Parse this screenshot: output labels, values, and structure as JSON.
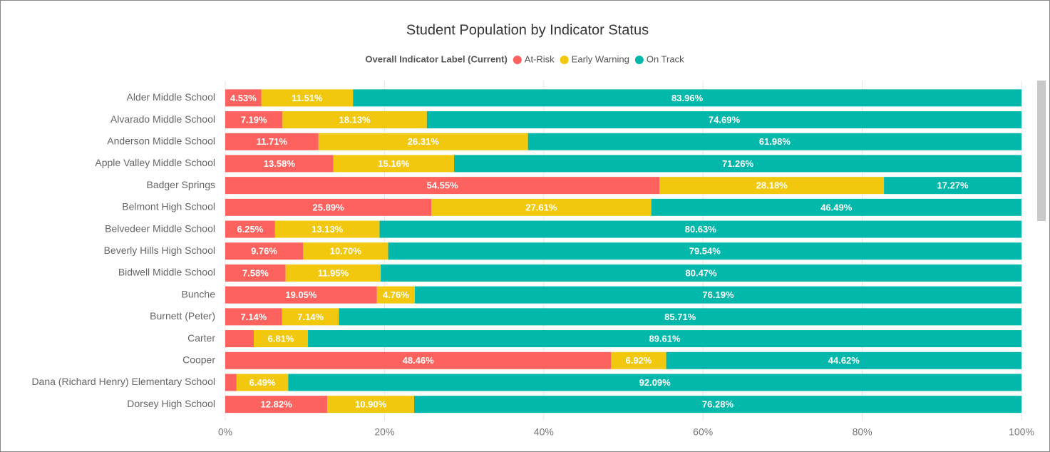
{
  "chart_data": {
    "type": "stacked-bar-horizontal",
    "title": "Student Population by Indicator Status",
    "legend_title": "Overall Indicator Label (Current)",
    "legend": "top",
    "categories": [
      "Alder Middle School",
      "Alvarado Middle School",
      "Anderson Middle School",
      "Apple Valley Middle School",
      "Badger Springs",
      "Belmont High School",
      "Belvedeer Middle School",
      "Beverly Hills High School",
      "Bidwell Middle School",
      "Bunche",
      "Burnett (Peter)",
      "Carter",
      "Cooper",
      "Dana (Richard Henry) Elementary School",
      "Dorsey High School"
    ],
    "series": [
      {
        "name": "At-Risk",
        "color": "#fd625e",
        "values": [
          4.53,
          7.19,
          11.71,
          13.58,
          54.55,
          25.89,
          6.25,
          9.76,
          7.58,
          19.05,
          7.14,
          3.58,
          48.46,
          1.42,
          12.82
        ],
        "value_labels": [
          "4.53%",
          "7.19%",
          "11.71%",
          "13.58%",
          "54.55%",
          "25.89%",
          "6.25%",
          "9.76%",
          "7.58%",
          "19.05%",
          "7.14%",
          null,
          "48.46%",
          null,
          "12.82%"
        ]
      },
      {
        "name": "Early Warning",
        "color": "#f2c80f",
        "values": [
          11.51,
          18.13,
          26.31,
          15.16,
          28.18,
          27.61,
          13.13,
          10.7,
          11.95,
          4.76,
          7.14,
          6.81,
          6.92,
          6.49,
          10.9
        ],
        "value_labels": [
          "11.51%",
          "18.13%",
          "26.31%",
          "15.16%",
          "28.18%",
          "27.61%",
          "13.13%",
          "10.70%",
          "11.95%",
          "4.76%",
          "7.14%",
          "6.81%",
          "6.92%",
          "6.49%",
          "10.90%"
        ]
      },
      {
        "name": "On Track",
        "color": "#01b8aa",
        "values": [
          83.96,
          74.69,
          61.98,
          71.26,
          17.27,
          46.49,
          80.63,
          79.54,
          80.47,
          76.19,
          85.71,
          89.61,
          44.62,
          92.09,
          76.28
        ],
        "value_labels": [
          "83.96%",
          "74.69%",
          "61.98%",
          "71.26%",
          "17.27%",
          "46.49%",
          "80.63%",
          "79.54%",
          "80.47%",
          "76.19%",
          "85.71%",
          "89.61%",
          "44.62%",
          "92.09%",
          "76.28%"
        ]
      }
    ],
    "xlim": [
      0,
      100
    ],
    "xticks": [
      {
        "value": 0,
        "label": "0%"
      },
      {
        "value": 20,
        "label": "20%"
      },
      {
        "value": 40,
        "label": "40%"
      },
      {
        "value": 60,
        "label": "60%"
      },
      {
        "value": 80,
        "label": "80%"
      },
      {
        "value": 100,
        "label": "100%"
      }
    ],
    "grid": true
  }
}
